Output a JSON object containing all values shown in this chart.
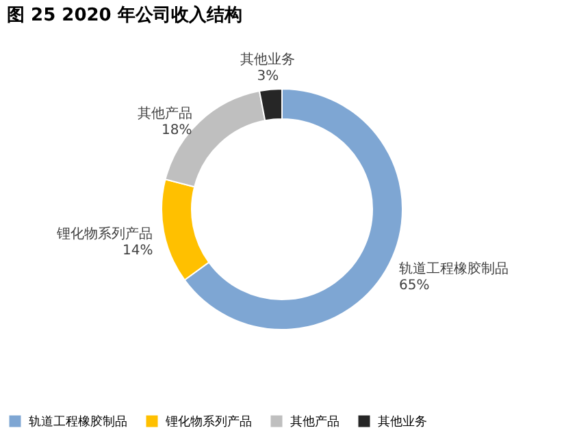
{
  "chart_data": {
    "type": "donut",
    "title": "图 25 2020 年公司收入结构",
    "categories": [
      "轨道工程橡胶制品",
      "锂化物系列产品",
      "其他产品",
      "其他业务"
    ],
    "values": [
      65,
      14,
      18,
      3
    ],
    "colors": [
      "#7ea6d3",
      "#ffc000",
      "#bfbfbf",
      "#262626"
    ],
    "value_labels": [
      "65%",
      "14%",
      "18%",
      "3%"
    ],
    "legend": "bottom"
  }
}
